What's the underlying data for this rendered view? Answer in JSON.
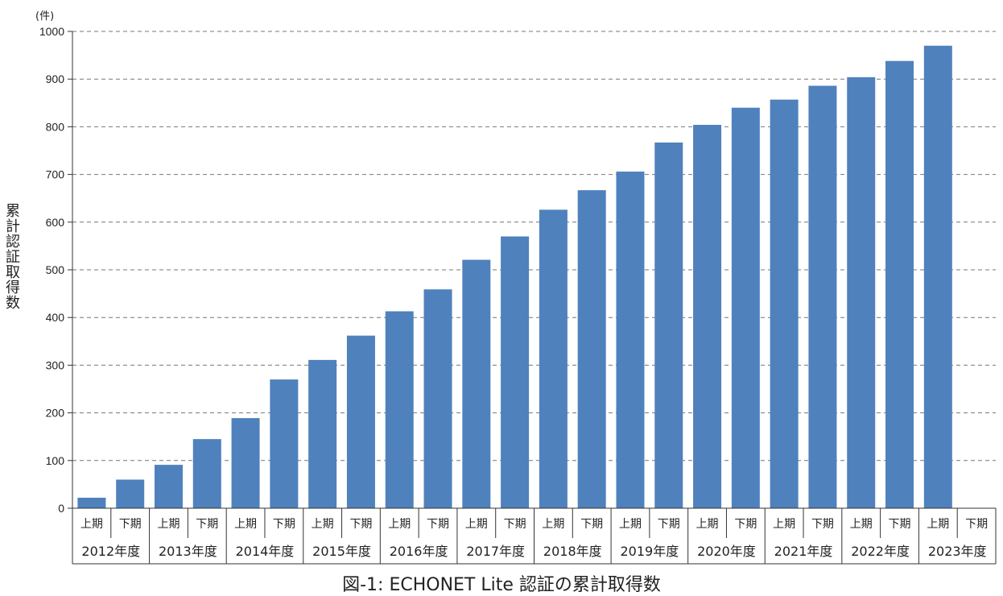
{
  "chart_data": {
    "type": "bar",
    "title": "図-1: ECHONET Lite 認証の累計取得数",
    "ylabel": "累計認証取得数",
    "yunit": "(件)",
    "ylim": [
      0,
      1000
    ],
    "yticks": [
      0,
      100,
      200,
      300,
      400,
      500,
      600,
      700,
      800,
      900,
      1000
    ],
    "grid": "dashed-horizontal",
    "color": "#4f81bd",
    "groups": [
      {
        "year": "2012年度",
        "halves": [
          {
            "label": "上期",
            "value": 22
          },
          {
            "label": "下期",
            "value": 60
          }
        ]
      },
      {
        "year": "2013年度",
        "halves": [
          {
            "label": "上期",
            "value": 91
          },
          {
            "label": "下期",
            "value": 145
          }
        ]
      },
      {
        "year": "2014年度",
        "halves": [
          {
            "label": "上期",
            "value": 189
          },
          {
            "label": "下期",
            "value": 270
          }
        ]
      },
      {
        "year": "2015年度",
        "halves": [
          {
            "label": "上期",
            "value": 311
          },
          {
            "label": "下期",
            "value": 362
          }
        ]
      },
      {
        "year": "2016年度",
        "halves": [
          {
            "label": "上期",
            "value": 413
          },
          {
            "label": "下期",
            "value": 459
          }
        ]
      },
      {
        "year": "2017年度",
        "halves": [
          {
            "label": "上期",
            "value": 521
          },
          {
            "label": "下期",
            "value": 570
          }
        ]
      },
      {
        "year": "2018年度",
        "halves": [
          {
            "label": "上期",
            "value": 626
          },
          {
            "label": "下期",
            "value": 667
          }
        ]
      },
      {
        "year": "2019年度",
        "halves": [
          {
            "label": "上期",
            "value": 706
          },
          {
            "label": "下期",
            "value": 767
          }
        ]
      },
      {
        "year": "2020年度",
        "halves": [
          {
            "label": "上期",
            "value": 804
          },
          {
            "label": "下期",
            "value": 840
          }
        ]
      },
      {
        "year": "2021年度",
        "halves": [
          {
            "label": "上期",
            "value": 857
          },
          {
            "label": "下期",
            "value": 886
          }
        ]
      },
      {
        "year": "2022年度",
        "halves": [
          {
            "label": "上期",
            "value": 904
          },
          {
            "label": "下期",
            "value": 938
          }
        ]
      },
      {
        "year": "2023年度",
        "halves": [
          {
            "label": "上期",
            "value": 970
          },
          {
            "label": "下期",
            "value": null
          }
        ]
      }
    ]
  }
}
